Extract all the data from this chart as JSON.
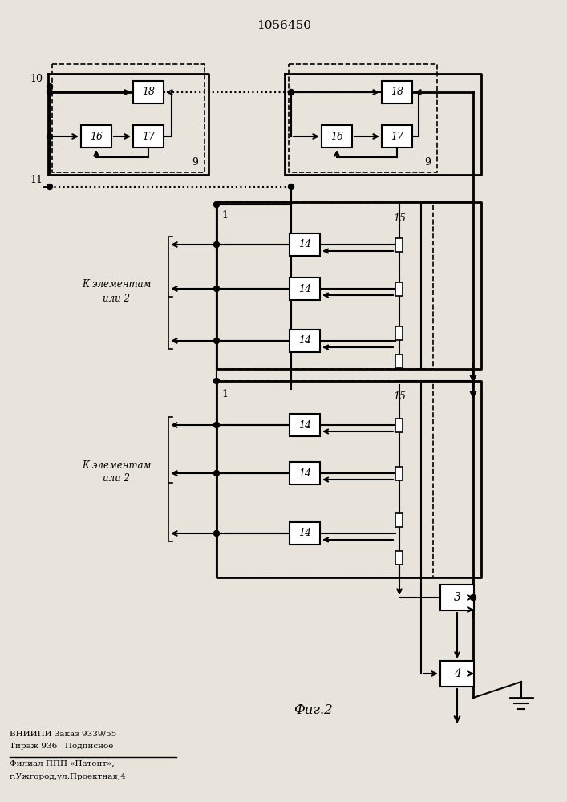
{
  "title": "1056450",
  "fig_label": "Фиг.2",
  "bottom_text": [
    "ВНИИПИ Заказ 9339/55",
    "Тираж 936   Подписное",
    "Филиал ППП «Патент»,",
    "г.Ужгород,ул.Проектная,4"
  ],
  "bg_color": "#e8e4dc"
}
